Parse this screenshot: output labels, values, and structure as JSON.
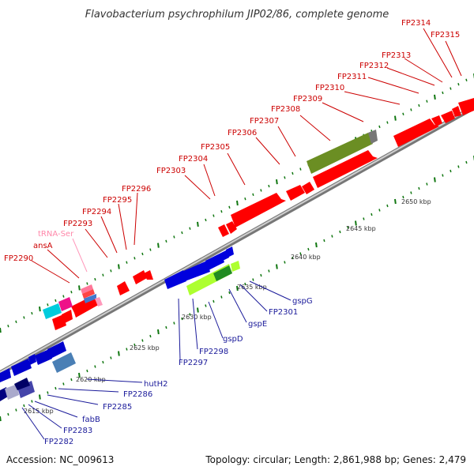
{
  "title": "Flavobacterium psychrophilum JIP02/86, complete genome",
  "footer": {
    "accession": "Accession: NC_009613",
    "topology": "Topology: circular; Length: 2,861,988 bp; Genes: 2,479"
  },
  "colors": {
    "backbone": "#999999",
    "forward_gene": "#ff0000",
    "reverse_gene": "#0000ff",
    "forward_label": "#cc0000",
    "reverse_label": "#1a1a9a",
    "trna_label": "#ff88aa",
    "tick": "#117711"
  },
  "scale_ticks": [
    "2615 kbp",
    "2620 kbp",
    "2625 kbp",
    "2630 kbp",
    "2635 kbp",
    "2640 kbp",
    "2645 kbp",
    "2650 kbp"
  ],
  "forward_labels": [
    "FP2290",
    "ansA",
    "tRNA-Ser",
    "FP2293",
    "FP2294",
    "FP2295",
    "FP2296",
    "FP2303",
    "FP2304",
    "FP2305",
    "FP2306",
    "FP2307",
    "FP2308",
    "FP2309",
    "FP2310",
    "FP2311",
    "FP2312",
    "FP2313",
    "FP2314",
    "FP2315"
  ],
  "reverse_labels": [
    "FP2282",
    "FP2283",
    "fabB",
    "FP2285",
    "FP2286",
    "hutH2",
    "FP2297",
    "FP2298",
    "gspD",
    "gspE",
    "FP2301",
    "gspG"
  ]
}
